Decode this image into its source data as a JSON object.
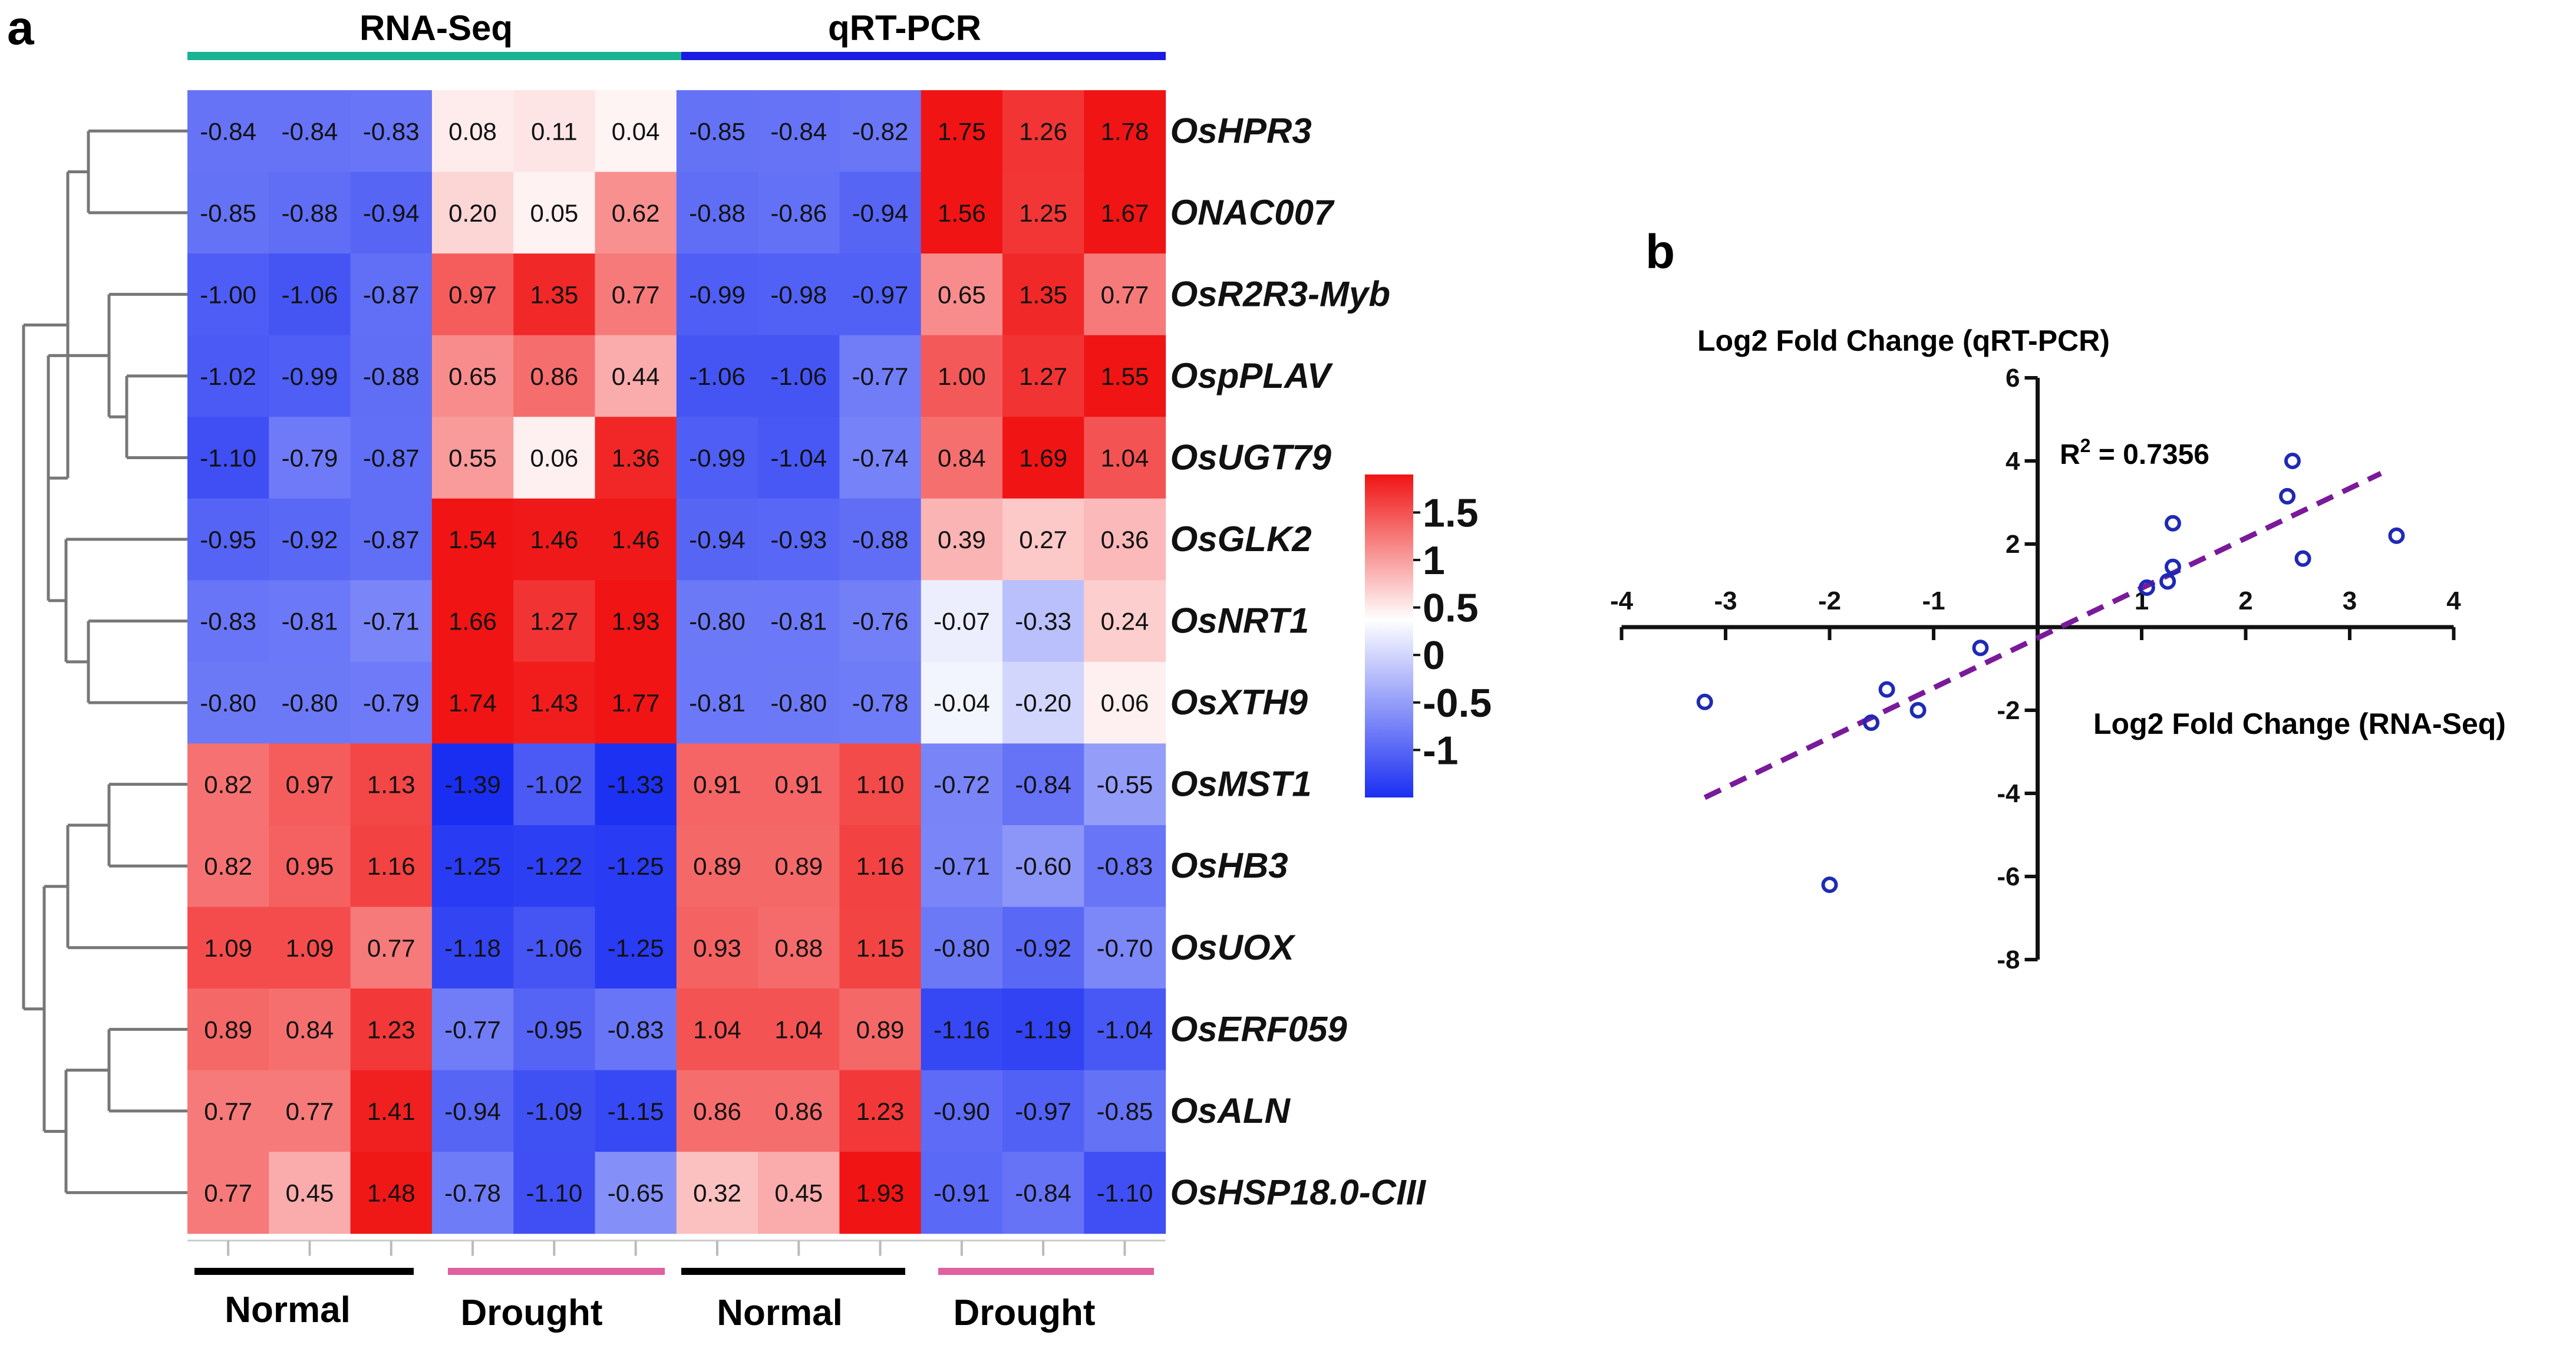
{
  "panels": {
    "a": "a",
    "b": "b"
  },
  "colors": {
    "low": "#1a2ef2",
    "mid": "#ffffff",
    "high": "#f01414",
    "rnaseq_bar": "#1ab394",
    "qrt_bar": "#1a1ae0",
    "normal_bar": "#000000",
    "drought_bar": "#e060a0",
    "scatter_point": "#1f2ab4",
    "fit_line": "#7a1a9a"
  },
  "chart_data": [
    {
      "type": "heatmap",
      "title": "",
      "top_groups": [
        "RNA-Seq",
        "qRT-PCR"
      ],
      "bottom_groups": [
        "Normal",
        "Drought",
        "Normal",
        "Drought"
      ],
      "colorbar": {
        "min": -1.5,
        "max": 1.9,
        "ticks": [
          "1.5",
          "1",
          "0.5",
          "0",
          "-0.5",
          "-1"
        ],
        "tick_values": [
          1.5,
          1.0,
          0.5,
          0.0,
          -0.5,
          -1.0
        ]
      },
      "genes": [
        "OsHPR3",
        "ONAC007",
        "OsR2R3-Myb",
        "OspPLAV",
        "OsUGT79",
        "OsGLK2",
        "OsNRT1",
        "OsXTH9",
        "OsMST1",
        "OsHB3",
        "OsUOX",
        "OsERF059",
        "OsALN",
        "OsHSP18.0-CIII"
      ],
      "values": [
        [
          "-0.84",
          "-0.84",
          "-0.83",
          "0.08",
          "0.11",
          "0.04",
          "-0.85",
          "-0.84",
          "-0.82",
          "1.75",
          "1.26",
          "1.78"
        ],
        [
          "-0.85",
          "-0.88",
          "-0.94",
          "0.20",
          "0.05",
          "0.62",
          "-0.88",
          "-0.86",
          "-0.94",
          "1.56",
          "1.25",
          "1.67"
        ],
        [
          "-1.00",
          "-1.06",
          "-0.87",
          "0.97",
          "1.35",
          "0.77",
          "-0.99",
          "-0.98",
          "-0.97",
          "0.65",
          "1.35",
          "0.77"
        ],
        [
          "-1.02",
          "-0.99",
          "-0.88",
          "0.65",
          "0.86",
          "0.44",
          "-1.06",
          "-1.06",
          "-0.77",
          "1.00",
          "1.27",
          "1.55"
        ],
        [
          "-1.10",
          "-0.79",
          "-0.87",
          "0.55",
          "0.06",
          "1.36",
          "-0.99",
          "-1.04",
          "-0.74",
          "0.84",
          "1.69",
          "1.04"
        ],
        [
          "-0.95",
          "-0.92",
          "-0.87",
          "1.54",
          "1.46",
          "1.46",
          "-0.94",
          "-0.93",
          "-0.88",
          "0.39",
          "0.27",
          "0.36"
        ],
        [
          "-0.83",
          "-0.81",
          "-0.71",
          "1.66",
          "1.27",
          "1.93",
          "-0.80",
          "-0.81",
          "-0.76",
          "-0.07",
          "-0.33",
          "0.24"
        ],
        [
          "-0.80",
          "-0.80",
          "-0.79",
          "1.74",
          "1.43",
          "1.77",
          "-0.81",
          "-0.80",
          "-0.78",
          "-0.04",
          "-0.20",
          "0.06"
        ],
        [
          "0.82",
          "0.97",
          "1.13",
          "-1.39",
          "-1.02",
          "-1.33",
          "0.91",
          "0.91",
          "1.10",
          "-0.72",
          "-0.84",
          "-0.55"
        ],
        [
          "0.82",
          "0.95",
          "1.16",
          "-1.25",
          "-1.22",
          "-1.25",
          "0.89",
          "0.89",
          "1.16",
          "-0.71",
          "-0.60",
          "-0.83"
        ],
        [
          "1.09",
          "1.09",
          "0.77",
          "-1.18",
          "-1.06",
          "-1.25",
          "0.93",
          "0.88",
          "1.15",
          "-0.80",
          "-0.92",
          "-0.70"
        ],
        [
          "0.89",
          "0.84",
          "1.23",
          "-0.77",
          "-0.95",
          "-0.83",
          "1.04",
          "1.04",
          "0.89",
          "-1.16",
          "-1.19",
          "-1.04"
        ],
        [
          "0.77",
          "0.77",
          "1.41",
          "-0.94",
          "-1.09",
          "-1.15",
          "0.86",
          "0.86",
          "1.23",
          "-0.90",
          "-0.97",
          "-0.85"
        ],
        [
          "0.77",
          "0.45",
          "1.48",
          "-0.78",
          "-1.10",
          "-0.65",
          "0.32",
          "0.45",
          "1.93",
          "-0.91",
          "-0.84",
          "-1.10"
        ]
      ]
    },
    {
      "type": "scatter",
      "xlabel": "Log2 Fold Change (RNA-Seq)",
      "ylabel": "Log2 Fold Change (qRT-PCR)",
      "r2_label": "R",
      "r2_sup": "2",
      "r2_value": " = 0.7356",
      "xlim": [
        -4,
        4
      ],
      "ylim": [
        -8,
        6
      ],
      "xticks": [
        -4,
        -3,
        -2,
        -1,
        1,
        2,
        3,
        4
      ],
      "yticks": [
        6,
        4,
        2,
        -2,
        -4,
        -6,
        -8
      ],
      "points": [
        {
          "x": -3.2,
          "y": -1.8
        },
        {
          "x": -2.0,
          "y": -6.2
        },
        {
          "x": -1.6,
          "y": -2.3
        },
        {
          "x": -1.45,
          "y": -1.5
        },
        {
          "x": -1.15,
          "y": -2.0
        },
        {
          "x": -0.55,
          "y": -0.5
        },
        {
          "x": 1.05,
          "y": 0.95
        },
        {
          "x": 1.25,
          "y": 1.1
        },
        {
          "x": 1.3,
          "y": 1.45
        },
        {
          "x": 1.3,
          "y": 2.5
        },
        {
          "x": 2.4,
          "y": 3.15
        },
        {
          "x": 2.45,
          "y": 4.0
        },
        {
          "x": 2.55,
          "y": 1.65
        },
        {
          "x": 3.45,
          "y": 2.2
        }
      ],
      "fit_line": {
        "x": [
          -3.2,
          3.3
        ],
        "y": [
          -4.1,
          3.7
        ]
      }
    }
  ]
}
